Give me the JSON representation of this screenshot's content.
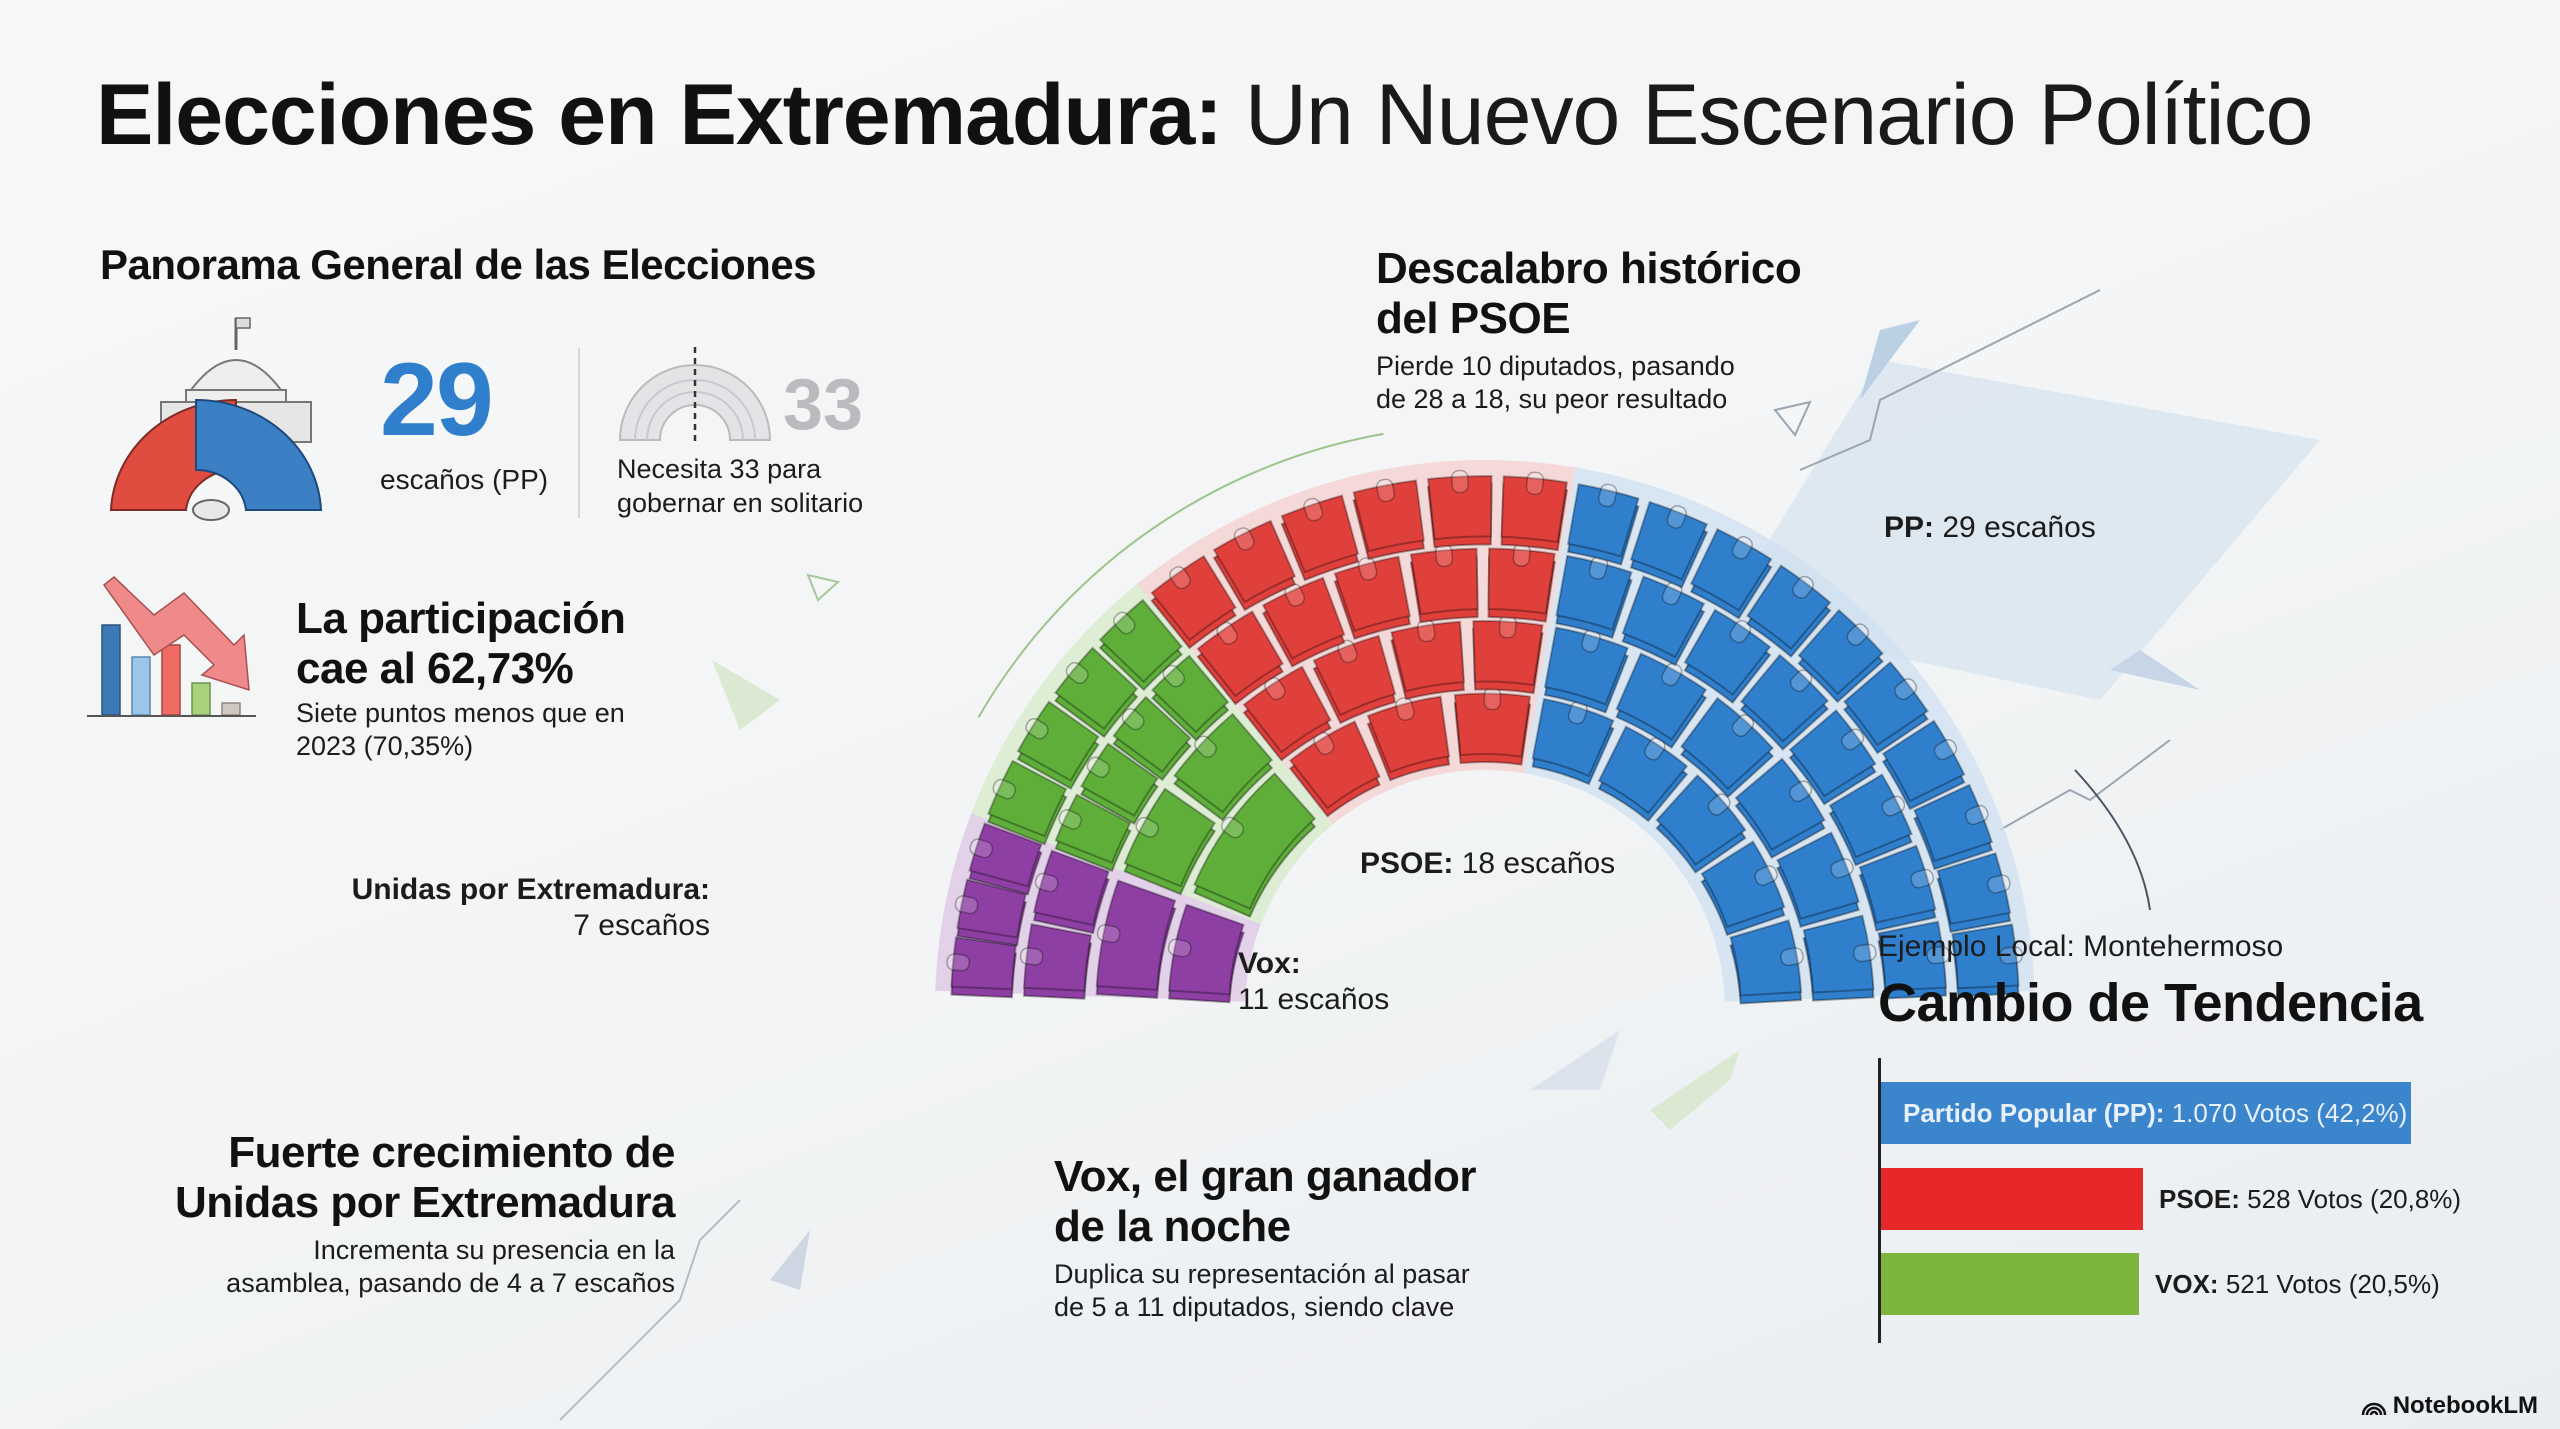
{
  "title": {
    "bold": "Elecciones en Extremadura:",
    "light": "Un Nuevo Escenario Político"
  },
  "panorama": {
    "heading": "Panorama General de las Elecciones",
    "pp_seats": "29",
    "pp_seats_caption": "escaños (PP)",
    "majority_number": "33",
    "majority_caption_line1": "Necesita 33 para",
    "majority_caption_line2": "gobernar en solitario"
  },
  "turnout": {
    "heading_line1": "La participación",
    "heading_line2": "cae al 62,73%",
    "caption_line1": "Siete puntos menos que en",
    "caption_line2": "2023 (70,35%)"
  },
  "psoe_note": {
    "heading_line1": "Descalabro histórico",
    "heading_line2": "del PSOE",
    "caption_line1": "Pierde 10 diputados, pasando",
    "caption_line2": "de 28 a 18, su peor resultado"
  },
  "unidas_note": {
    "heading_line1": "Fuerte crecimiento de",
    "heading_line2": "Unidas por Extremadura",
    "caption_line1": "Incrementa su presencia en la",
    "caption_line2": "asamblea, pasando de 4 a 7 escaños"
  },
  "vox_note": {
    "heading_line1": "Vox, el gran ganador",
    "heading_line2": "de la noche",
    "caption_line1": "Duplica su representación al pasar",
    "caption_line2": "de 5 a 11 diputados, siendo clave"
  },
  "hemicycle": {
    "total_seats": 65,
    "majority": 33,
    "parties": [
      {
        "id": "unidas",
        "name": "Unidas por Extremadura:",
        "seats_text": "7 escaños",
        "seats": 7,
        "color": "#8e3fa3",
        "light": "#dcc6e3"
      },
      {
        "id": "vox",
        "name": "Vox:",
        "seats_text": "11 escaños",
        "seats": 11,
        "color": "#5fae3a",
        "light": "#d5ebc8"
      },
      {
        "id": "psoe",
        "name": "PSOE:",
        "seats_text": "18 escaños",
        "seats": 18,
        "color": "#e0403c",
        "light": "#f6cfcd"
      },
      {
        "id": "pp",
        "name": "PP:",
        "seats_text": "29 escaños",
        "seats": 29,
        "color": "#2f7fcc",
        "light": "#cfe0f1"
      }
    ]
  },
  "local_example": {
    "kicker": "Ejemplo Local: Montehermoso",
    "heading": "Cambio de Tendencia"
  },
  "chart_data": {
    "type": "bar",
    "orientation": "horizontal",
    "title": "Cambio de Tendencia",
    "subtitle": "Ejemplo Local: Montehermoso",
    "categories": [
      "Partido Popular (PP)",
      "PSOE",
      "VOX"
    ],
    "values": [
      1070,
      528,
      521
    ],
    "percentages": [
      42.2,
      20.8,
      20.5
    ],
    "labels": [
      {
        "party": "Partido Popular (PP):",
        "value": "1.070 Votos (42,2%)"
      },
      {
        "party": "PSOE:",
        "value": "528 Votos (20,8%)"
      },
      {
        "party": "VOX:",
        "value": "521 Votos (20,5%)"
      }
    ],
    "colors": [
      "#3a85cc",
      "#e6282a",
      "#7cb53c"
    ],
    "xlabel": "",
    "ylabel": "",
    "grid": false,
    "legend": "none"
  },
  "brand": {
    "name": "NotebookLM"
  }
}
